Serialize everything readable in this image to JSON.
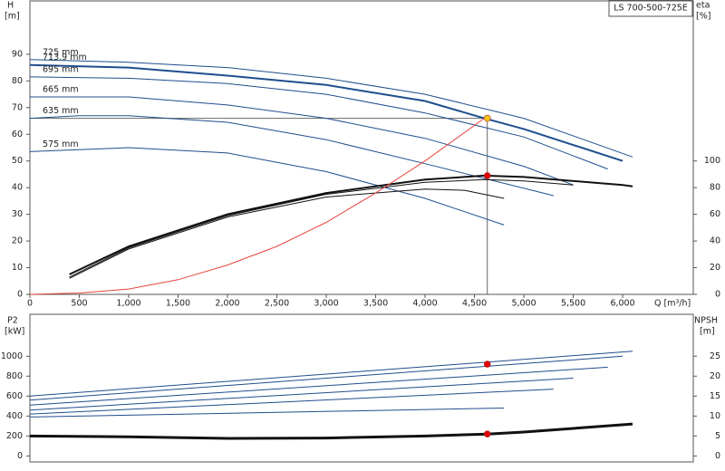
{
  "chart_data": [
    {
      "type": "line",
      "annotation": "LS 700-500-725E",
      "x_label": "Q [m³/h]",
      "y_label": [
        "H",
        "[m]"
      ],
      "y2_label": [
        "eta",
        "[%]"
      ],
      "xlim": [
        0,
        6715
      ],
      "xticks": [
        0,
        500,
        {
          "value": 1000,
          "label": "1,000"
        },
        {
          "value": 1500,
          "label": "1,500"
        },
        {
          "value": 2000,
          "label": "2,000"
        },
        {
          "value": 2500,
          "label": "2,500"
        },
        {
          "value": 3000,
          "label": "3,000"
        },
        {
          "value": 3500,
          "label": "3,500"
        },
        {
          "value": 4000,
          "label": "4,000"
        },
        {
          "value": 4500,
          "label": "4,500"
        },
        {
          "value": 5000,
          "label": "5,000"
        },
        {
          "value": 5500,
          "label": "5,500"
        },
        {
          "value": 6000,
          "label": "6,000"
        }
      ],
      "ylim": [
        0,
        110
      ],
      "yticks": [
        0,
        10,
        20,
        30,
        40,
        50,
        60,
        70,
        80,
        90
      ],
      "y2lim": [
        0,
        220
      ],
      "y2ticks": [
        0,
        20,
        40,
        60,
        80,
        100
      ],
      "crosshair": true,
      "series": [
        {
          "name": "725 mm",
          "color": "#1f4e8c",
          "x": [
            0,
            1000,
            2000,
            3000,
            4000,
            5000,
            6100
          ],
          "values": [
            88,
            87,
            85,
            81,
            75,
            66,
            51.5
          ]
        },
        {
          "name": "713.9 mm",
          "color": "#1f4e8c",
          "width": 2,
          "x": [
            0,
            1000,
            2000,
            3000,
            4000,
            4600,
            5000,
            6000
          ],
          "values": [
            86,
            85,
            82,
            78.5,
            72.5,
            66,
            62,
            50
          ]
        },
        {
          "name": "695 mm",
          "color": "#1f4e8c",
          "x": [
            0,
            1000,
            2000,
            3000,
            4000,
            5000,
            5850
          ],
          "values": [
            81.5,
            81,
            79,
            75,
            68,
            59,
            47
          ]
        },
        {
          "name": "665 mm",
          "color": "#1f4e8c",
          "x": [
            0,
            1000,
            2000,
            3000,
            4000,
            5000,
            5500
          ],
          "values": [
            74,
            74,
            71,
            66,
            58.5,
            48,
            41
          ]
        },
        {
          "name": "635 mm",
          "color": "#1f4e8c",
          "x": [
            0,
            500,
            1000,
            2000,
            3000,
            4000,
            5300
          ],
          "values": [
            66,
            67,
            67,
            64.5,
            58,
            49,
            37
          ]
        },
        {
          "name": "575 mm",
          "color": "#1f4e8c",
          "x": [
            0,
            1000,
            2000,
            3000,
            4000,
            4800
          ],
          "values": [
            53.5,
            55,
            53,
            46,
            36,
            26
          ]
        },
        {
          "color": "#111111",
          "axis": "y2",
          "width": 2,
          "x": [
            400,
            1000,
            2000,
            3000,
            4000,
            4600,
            5000,
            6000,
            6100
          ],
          "values": [
            15,
            36,
            60,
            76,
            86,
            89,
            88,
            82,
            81
          ]
        },
        {
          "color": "#111111",
          "axis": "y2",
          "x": [
            400,
            1000,
            2000,
            3000,
            4000,
            4600,
            5000,
            5500
          ],
          "values": [
            13,
            35,
            59,
            75,
            84,
            86,
            85,
            82
          ]
        },
        {
          "color": "#111111",
          "axis": "y2",
          "x": [
            400,
            1000,
            2000,
            3000,
            4000,
            4400,
            4800
          ],
          "values": [
            12,
            34,
            58,
            73,
            79,
            78,
            72
          ]
        },
        {
          "color": "#e8453c",
          "x": [
            0,
            500,
            1000,
            1500,
            2000,
            2500,
            3000,
            3500,
            4000,
            4600
          ],
          "values": [
            0,
            0.5,
            2,
            5.5,
            11,
            18,
            27,
            38,
            50,
            66
          ]
        }
      ],
      "markers": [
        {
          "x": 4630,
          "y": 66,
          "color": "#f5c518"
        },
        {
          "x": 4630,
          "y": 89,
          "axis": "y2",
          "color": "#e00000"
        }
      ]
    },
    {
      "type": "line",
      "y_label": [
        "P2",
        "[kW]"
      ],
      "y2_label": [
        "NPSH",
        "[m]"
      ],
      "xlim": [
        0,
        6715
      ],
      "ylim": [
        -60,
        1420
      ],
      "yticks": [
        0,
        200,
        400,
        600,
        800,
        1000
      ],
      "y2lim": [
        -1.5,
        35.5
      ],
      "y2ticks": [
        0,
        5,
        10,
        15,
        20,
        25
      ],
      "series": [
        {
          "color": "#1f4e8c",
          "x": [
            0,
            6100
          ],
          "values": [
            600,
            1050
          ]
        },
        {
          "color": "#1f4e8c",
          "x": [
            0,
            6000
          ],
          "values": [
            560,
            1000
          ]
        },
        {
          "color": "#1f4e8c",
          "x": [
            0,
            5850
          ],
          "values": [
            510,
            890
          ]
        },
        {
          "color": "#1f4e8c",
          "x": [
            0,
            5500
          ],
          "values": [
            460,
            780
          ]
        },
        {
          "color": "#1f4e8c",
          "x": [
            0,
            5300
          ],
          "values": [
            420,
            670
          ]
        },
        {
          "color": "#1f4e8c",
          "x": [
            0,
            4800
          ],
          "values": [
            390,
            480
          ]
        },
        {
          "color": "#111111",
          "axis": "y2",
          "width": 3,
          "x": [
            0,
            1000,
            2000,
            3000,
            4000,
            4630,
            5000,
            6100
          ],
          "values": [
            5,
            4.8,
            4.4,
            4.5,
            5,
            5.5,
            6,
            8
          ]
        }
      ],
      "markers": [
        {
          "x": 4630,
          "y": 920,
          "color": "#e00000"
        },
        {
          "x": 4630,
          "y": 5.5,
          "axis": "y2",
          "color": "#e00000"
        }
      ]
    }
  ]
}
